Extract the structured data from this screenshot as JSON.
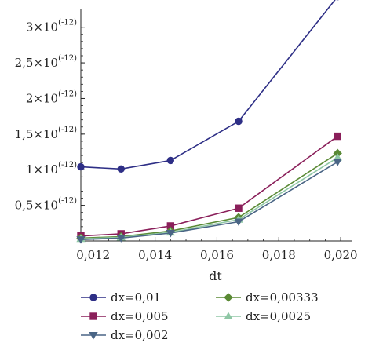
{
  "chart_data": {
    "type": "line",
    "xlabel": "dt",
    "ylabel": "",
    "x": [
      0.0116,
      0.0129,
      0.0145,
      0.0167,
      0.0199
    ],
    "xlim": [
      0.0116,
      0.0202
    ],
    "ylim": [
      0,
      3.25e-12
    ],
    "x_ticks": [
      {
        "value": 0.012,
        "label": "0,012"
      },
      {
        "value": 0.014,
        "label": "0,014"
      },
      {
        "value": 0.016,
        "label": "0,016"
      },
      {
        "value": 0.018,
        "label": "0,018"
      },
      {
        "value": 0.02,
        "label": "0,020"
      }
    ],
    "y_ticks": [
      {
        "value": 5e-13,
        "mantissa": "0,5×10",
        "exponent": "(-12)"
      },
      {
        "value": 1e-12,
        "mantissa": "1×10",
        "exponent": "(-12)"
      },
      {
        "value": 1.5e-12,
        "mantissa": "1,5×10",
        "exponent": "(-12)"
      },
      {
        "value": 2e-12,
        "mantissa": "2×10",
        "exponent": "(-12)"
      },
      {
        "value": 2.5e-12,
        "mantissa": "2,5×10",
        "exponent": "(-12)"
      },
      {
        "value": 3e-12,
        "mantissa": "3×10",
        "exponent": "(-12)"
      }
    ],
    "grid": false,
    "legend": "bottom",
    "series": [
      {
        "name": "dx=0,01",
        "color": "#2e2f86",
        "marker": "circle",
        "values": [
          1.04e-12,
          1.01e-12,
          1.13e-12,
          1.68e-12,
          3.43e-12
        ]
      },
      {
        "name": "dx=0,005",
        "color": "#8a1f5a",
        "marker": "square",
        "values": [
          7e-14,
          1e-13,
          2.1e-13,
          4.6e-13,
          1.47e-12
        ]
      },
      {
        "name": "dx=0,002",
        "color": "#4a6585",
        "marker": "triangle-down",
        "values": [
          2e-14,
          4e-14,
          1.1e-13,
          2.7e-13,
          1.11e-12
        ]
      },
      {
        "name": "dx=0,00333",
        "color": "#5a8a35",
        "marker": "diamond",
        "values": [
          4e-14,
          6e-14,
          1.4e-13,
          3.3e-13,
          1.23e-12
        ]
      },
      {
        "name": "dx=0,0025",
        "color": "#8fc7a5",
        "marker": "triangle-up",
        "values": [
          3e-14,
          5e-14,
          1.2e-13,
          3e-13,
          1.17e-12
        ]
      }
    ]
  }
}
